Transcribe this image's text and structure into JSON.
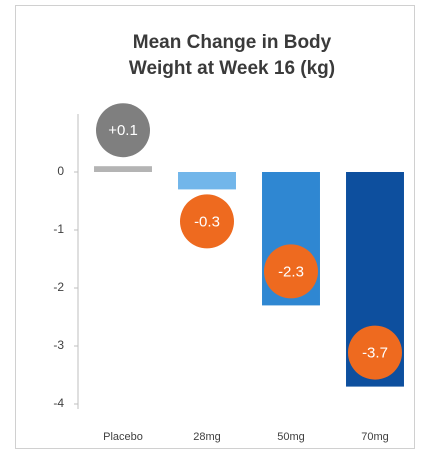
{
  "chart_data": {
    "type": "bar",
    "title": "Mean Change in Body Weight at Week 16 (kg)",
    "categories": [
      "Placebo",
      "28mg",
      "50mg",
      "70mg"
    ],
    "values": [
      0.1,
      -0.3,
      -2.3,
      -3.7
    ],
    "value_labels": [
      "+0.1",
      "-0.3",
      "-2.3",
      "-3.7"
    ],
    "colors": [
      "#b4b4b4",
      "#72b6ea",
      "#2f87d2",
      "#0d4f9e"
    ],
    "label_colors": [
      "#7f7f7f",
      "#ee6a1f",
      "#ee6a1f",
      "#ee6a1f"
    ],
    "ylim": [
      -4,
      1
    ],
    "yticks": [
      0,
      -1,
      -2,
      -3,
      -4
    ]
  }
}
